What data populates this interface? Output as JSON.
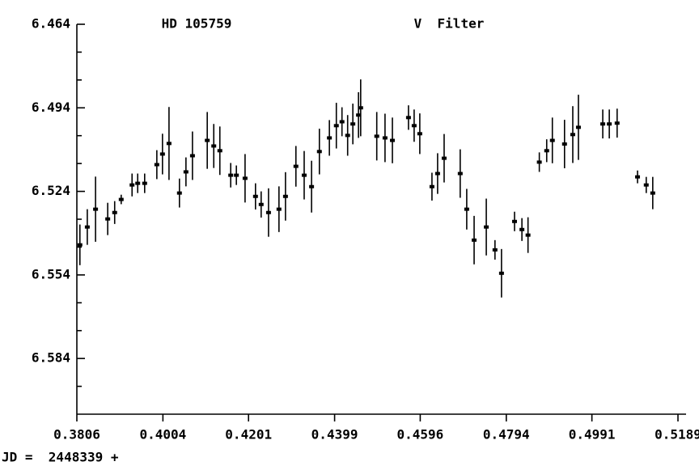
{
  "chart_data": {
    "type": "errorbar_scatter",
    "title": "HD 105759",
    "subtitle": "V  Filter",
    "x_label": "JD =  2448339 +",
    "xlim": [
      0.3806,
      0.5189
    ],
    "xticks": [
      0.3806,
      0.4004,
      0.4201,
      0.4399,
      0.4596,
      0.4794,
      0.4991,
      0.5189
    ],
    "ylim": [
      6.604,
      6.464
    ],
    "yticks": [
      6.464,
      6.494,
      6.524,
      6.554,
      6.584
    ],
    "yminorticks": [
      6.474,
      6.484,
      6.504,
      6.514,
      6.534,
      6.544,
      6.564,
      6.574,
      6.594
    ],
    "color": "#000000",
    "series": [
      {
        "x": [
          0.3813,
          0.383,
          0.3849,
          0.3877,
          0.3893,
          0.3908,
          0.3933,
          0.3946,
          0.3962,
          0.399,
          0.4003,
          0.4018,
          0.4042,
          0.4057,
          0.4072,
          0.4106,
          0.4121,
          0.4135,
          0.416,
          0.4173,
          0.4193,
          0.4217,
          0.423,
          0.4247,
          0.4271,
          0.4286,
          0.431,
          0.4329,
          0.4346,
          0.4364,
          0.4387,
          0.4403,
          0.4416,
          0.4429,
          0.4441,
          0.4454,
          0.4459,
          0.4496,
          0.4515,
          0.4532,
          0.4569,
          0.4582,
          0.4595,
          0.4623,
          0.4636,
          0.4651,
          0.4688,
          0.4703,
          0.472,
          0.4748,
          0.4768,
          0.4783,
          0.4813,
          0.483,
          0.4844,
          0.487,
          0.4887,
          0.49,
          0.4928,
          0.4947,
          0.496,
          0.5016,
          0.5031,
          0.5049,
          0.5096,
          0.5116,
          0.5131
        ],
        "values": [
          6.5432,
          6.5368,
          6.5304,
          6.5339,
          6.5316,
          6.5269,
          6.5217,
          6.5211,
          6.5211,
          6.5144,
          6.5106,
          6.5068,
          6.5246,
          6.517,
          6.5112,
          6.5057,
          6.5077,
          6.5094,
          6.5182,
          6.5182,
          6.5193,
          6.5258,
          6.5287,
          6.5316,
          6.5304,
          6.5258,
          6.515,
          6.5182,
          6.5223,
          6.5097,
          6.5048,
          6.5004,
          6.499,
          6.5039,
          6.4998,
          6.4966,
          6.494,
          6.5042,
          6.5048,
          6.5057,
          6.4975,
          6.5004,
          6.5033,
          6.5223,
          6.5176,
          6.5121,
          6.5176,
          6.5304,
          6.5415,
          6.5368,
          6.545,
          6.5534,
          6.5348,
          6.5377,
          6.5397,
          6.5135,
          6.5094,
          6.5057,
          6.507,
          6.5036,
          6.501,
          6.4998,
          6.4998,
          6.4995,
          6.5188,
          6.5217,
          6.5246
        ],
        "errors": [
          0.0073,
          0.0064,
          0.0117,
          0.0058,
          0.0041,
          0.0017,
          0.0041,
          0.0035,
          0.0035,
          0.0052,
          0.0073,
          0.0131,
          0.0052,
          0.0052,
          0.0087,
          0.0102,
          0.0079,
          0.0087,
          0.0044,
          0.0035,
          0.0087,
          0.0047,
          0.0047,
          0.0087,
          0.0082,
          0.0087,
          0.0073,
          0.0087,
          0.0093,
          0.0082,
          0.0064,
          0.0082,
          0.0052,
          0.0073,
          0.0073,
          0.0082,
          0.0102,
          0.0087,
          0.0087,
          0.0082,
          0.0044,
          0.0058,
          0.0073,
          0.005,
          0.0073,
          0.0087,
          0.0087,
          0.0073,
          0.0087,
          0.0102,
          0.0035,
          0.0087,
          0.0035,
          0.0041,
          0.0064,
          0.0035,
          0.0041,
          0.0082,
          0.0087,
          0.0102,
          0.0117,
          0.0052,
          0.0052,
          0.0052,
          0.0023,
          0.0029,
          0.0058
        ]
      }
    ]
  }
}
